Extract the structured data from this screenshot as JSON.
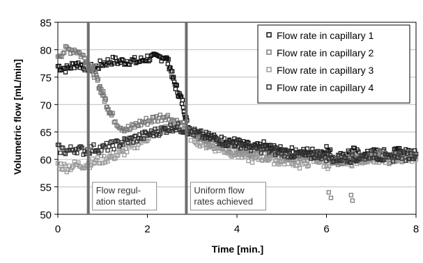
{
  "chart_data": {
    "type": "scatter",
    "title": "",
    "xlabel": "Time [min.]",
    "ylabel": "Volumetric flow [mL/min]",
    "xlim": [
      0,
      8
    ],
    "ylim": [
      50,
      85
    ],
    "x_ticks": [
      "0",
      "2",
      "4",
      "6",
      "8"
    ],
    "y_ticks": [
      "50",
      "55",
      "60",
      "65",
      "70",
      "75",
      "80",
      "85"
    ],
    "grid": "horizontal",
    "legend_position": "top-right",
    "colors": {
      "capillary_1": "#111111",
      "capillary_2": "#7a7a7a",
      "capillary_3": "#9a9a9a",
      "capillary_4": "#303030",
      "marker_line": "#6e6e6e",
      "grid": "#bdbdbd"
    },
    "markers": [
      {
        "x": 0.68,
        "label": "Flow regul-\nation started"
      },
      {
        "x": 2.87,
        "label": "Uniform flow\nrates achieved"
      }
    ],
    "series": [
      {
        "name": "Flow rate in capillary 1",
        "x": [
          0,
          0.2,
          0.4,
          0.6,
          0.8,
          1.0,
          1.2,
          1.4,
          1.6,
          1.8,
          2.0,
          2.2,
          2.4,
          2.5,
          2.6,
          2.7,
          2.8,
          2.9,
          3.0,
          3.2,
          3.4,
          3.6,
          3.8,
          4.0,
          4.2,
          4.4,
          4.6,
          4.8,
          5.0,
          5.2,
          5.4,
          5.6,
          5.8,
          6.0,
          6.2,
          6.4,
          6.6,
          6.8,
          7.0,
          7.2,
          7.4,
          7.6,
          7.8,
          8.0
        ],
        "y": [
          77,
          76.5,
          77.5,
          77,
          76.5,
          77.5,
          78,
          77.8,
          78,
          77.8,
          78.5,
          78.5,
          78.8,
          77,
          74,
          72,
          70,
          66,
          65,
          64.5,
          64,
          63.5,
          63.5,
          63,
          62.5,
          62,
          62.5,
          62,
          61.5,
          61.5,
          61,
          61.5,
          61,
          62,
          60,
          61,
          61.5,
          60.5,
          61,
          61.5,
          60.5,
          62,
          61,
          61
        ]
      },
      {
        "name": "Flow rate in capillary 2",
        "x": [
          0,
          0.2,
          0.4,
          0.6,
          0.7,
          0.8,
          0.9,
          1.0,
          1.1,
          1.2,
          1.4,
          1.6,
          1.8,
          2.0,
          2.2,
          2.4,
          2.6,
          2.8,
          3.0,
          3.2,
          3.4,
          3.6,
          3.8,
          4.0,
          4.2,
          4.4,
          4.6,
          4.8,
          5.0,
          5.2,
          5.4,
          5.6,
          5.8,
          6.0,
          6.2,
          6.4,
          6.6,
          6.8,
          7.0,
          7.2,
          7.4,
          7.6,
          7.8,
          8.0
        ],
        "y": [
          79,
          80,
          80,
          78.5,
          77,
          76,
          74,
          72,
          70,
          68,
          66,
          65.5,
          66.5,
          67,
          67.5,
          68,
          67,
          66,
          64.5,
          64,
          63,
          62.5,
          62,
          62,
          61.5,
          61,
          61.5,
          60.5,
          61,
          60,
          60.5,
          60,
          60.5,
          61,
          59.5,
          60,
          60.5,
          60,
          60.5,
          61,
          60,
          60.5,
          61,
          60.5
        ]
      },
      {
        "name": "Flow rate in capillary 3",
        "x": [
          0,
          0.2,
          0.4,
          0.6,
          0.8,
          1.0,
          1.2,
          1.4,
          1.6,
          1.8,
          2.0,
          2.2,
          2.4,
          2.6,
          2.8,
          3.0,
          3.2,
          3.4,
          3.6,
          3.8,
          4.0,
          4.2,
          4.4,
          4.6,
          4.8,
          5.0,
          5.2,
          5.4,
          5.6,
          5.8,
          6.0,
          6.2,
          6.4,
          6.6,
          6.8,
          7.0,
          7.2,
          7.4,
          7.6,
          7.8,
          8.0
        ],
        "y": [
          59,
          58.5,
          59,
          59,
          59.5,
          60,
          60.5,
          61,
          62,
          63,
          64,
          65,
          65.5,
          66,
          65.5,
          64,
          63,
          62.5,
          62,
          61.5,
          61,
          60.5,
          60,
          60.5,
          60,
          59.5,
          60,
          59,
          59.5,
          60,
          59,
          59.5,
          60,
          59.5,
          60,
          60.5,
          59.5,
          60,
          60.5,
          60,
          60
        ]
      },
      {
        "name": "Flow rate in capillary 4",
        "x": [
          0,
          0.2,
          0.4,
          0.6,
          0.8,
          1.0,
          1.2,
          1.4,
          1.6,
          1.8,
          2.0,
          2.2,
          2.4,
          2.6,
          2.8,
          3.0,
          3.2,
          3.4,
          3.6,
          3.8,
          4.0,
          4.2,
          4.4,
          4.6,
          4.8,
          5.0,
          5.2,
          5.4,
          5.6,
          5.8,
          6.0,
          6.2,
          6.4,
          6.6,
          6.8,
          7.0,
          7.2,
          7.4,
          7.6,
          7.8,
          8.0
        ],
        "y": [
          62,
          61.5,
          62,
          61.5,
          62,
          62,
          62.5,
          63,
          63.5,
          64,
          64.5,
          65,
          65.5,
          66,
          65.5,
          65,
          64.5,
          64,
          63.5,
          63,
          63,
          62.5,
          62,
          62,
          61.5,
          61.5,
          61,
          61,
          60.5,
          61,
          60.5,
          60,
          60.5,
          60,
          60.5,
          61,
          60.5,
          60,
          61,
          60.5,
          61
        ]
      },
      {
        "name": "",
        "x": [
          6.05,
          6.1,
          6.55,
          6.58
        ],
        "y": [
          54,
          53,
          53.5,
          52.5
        ]
      }
    ]
  }
}
